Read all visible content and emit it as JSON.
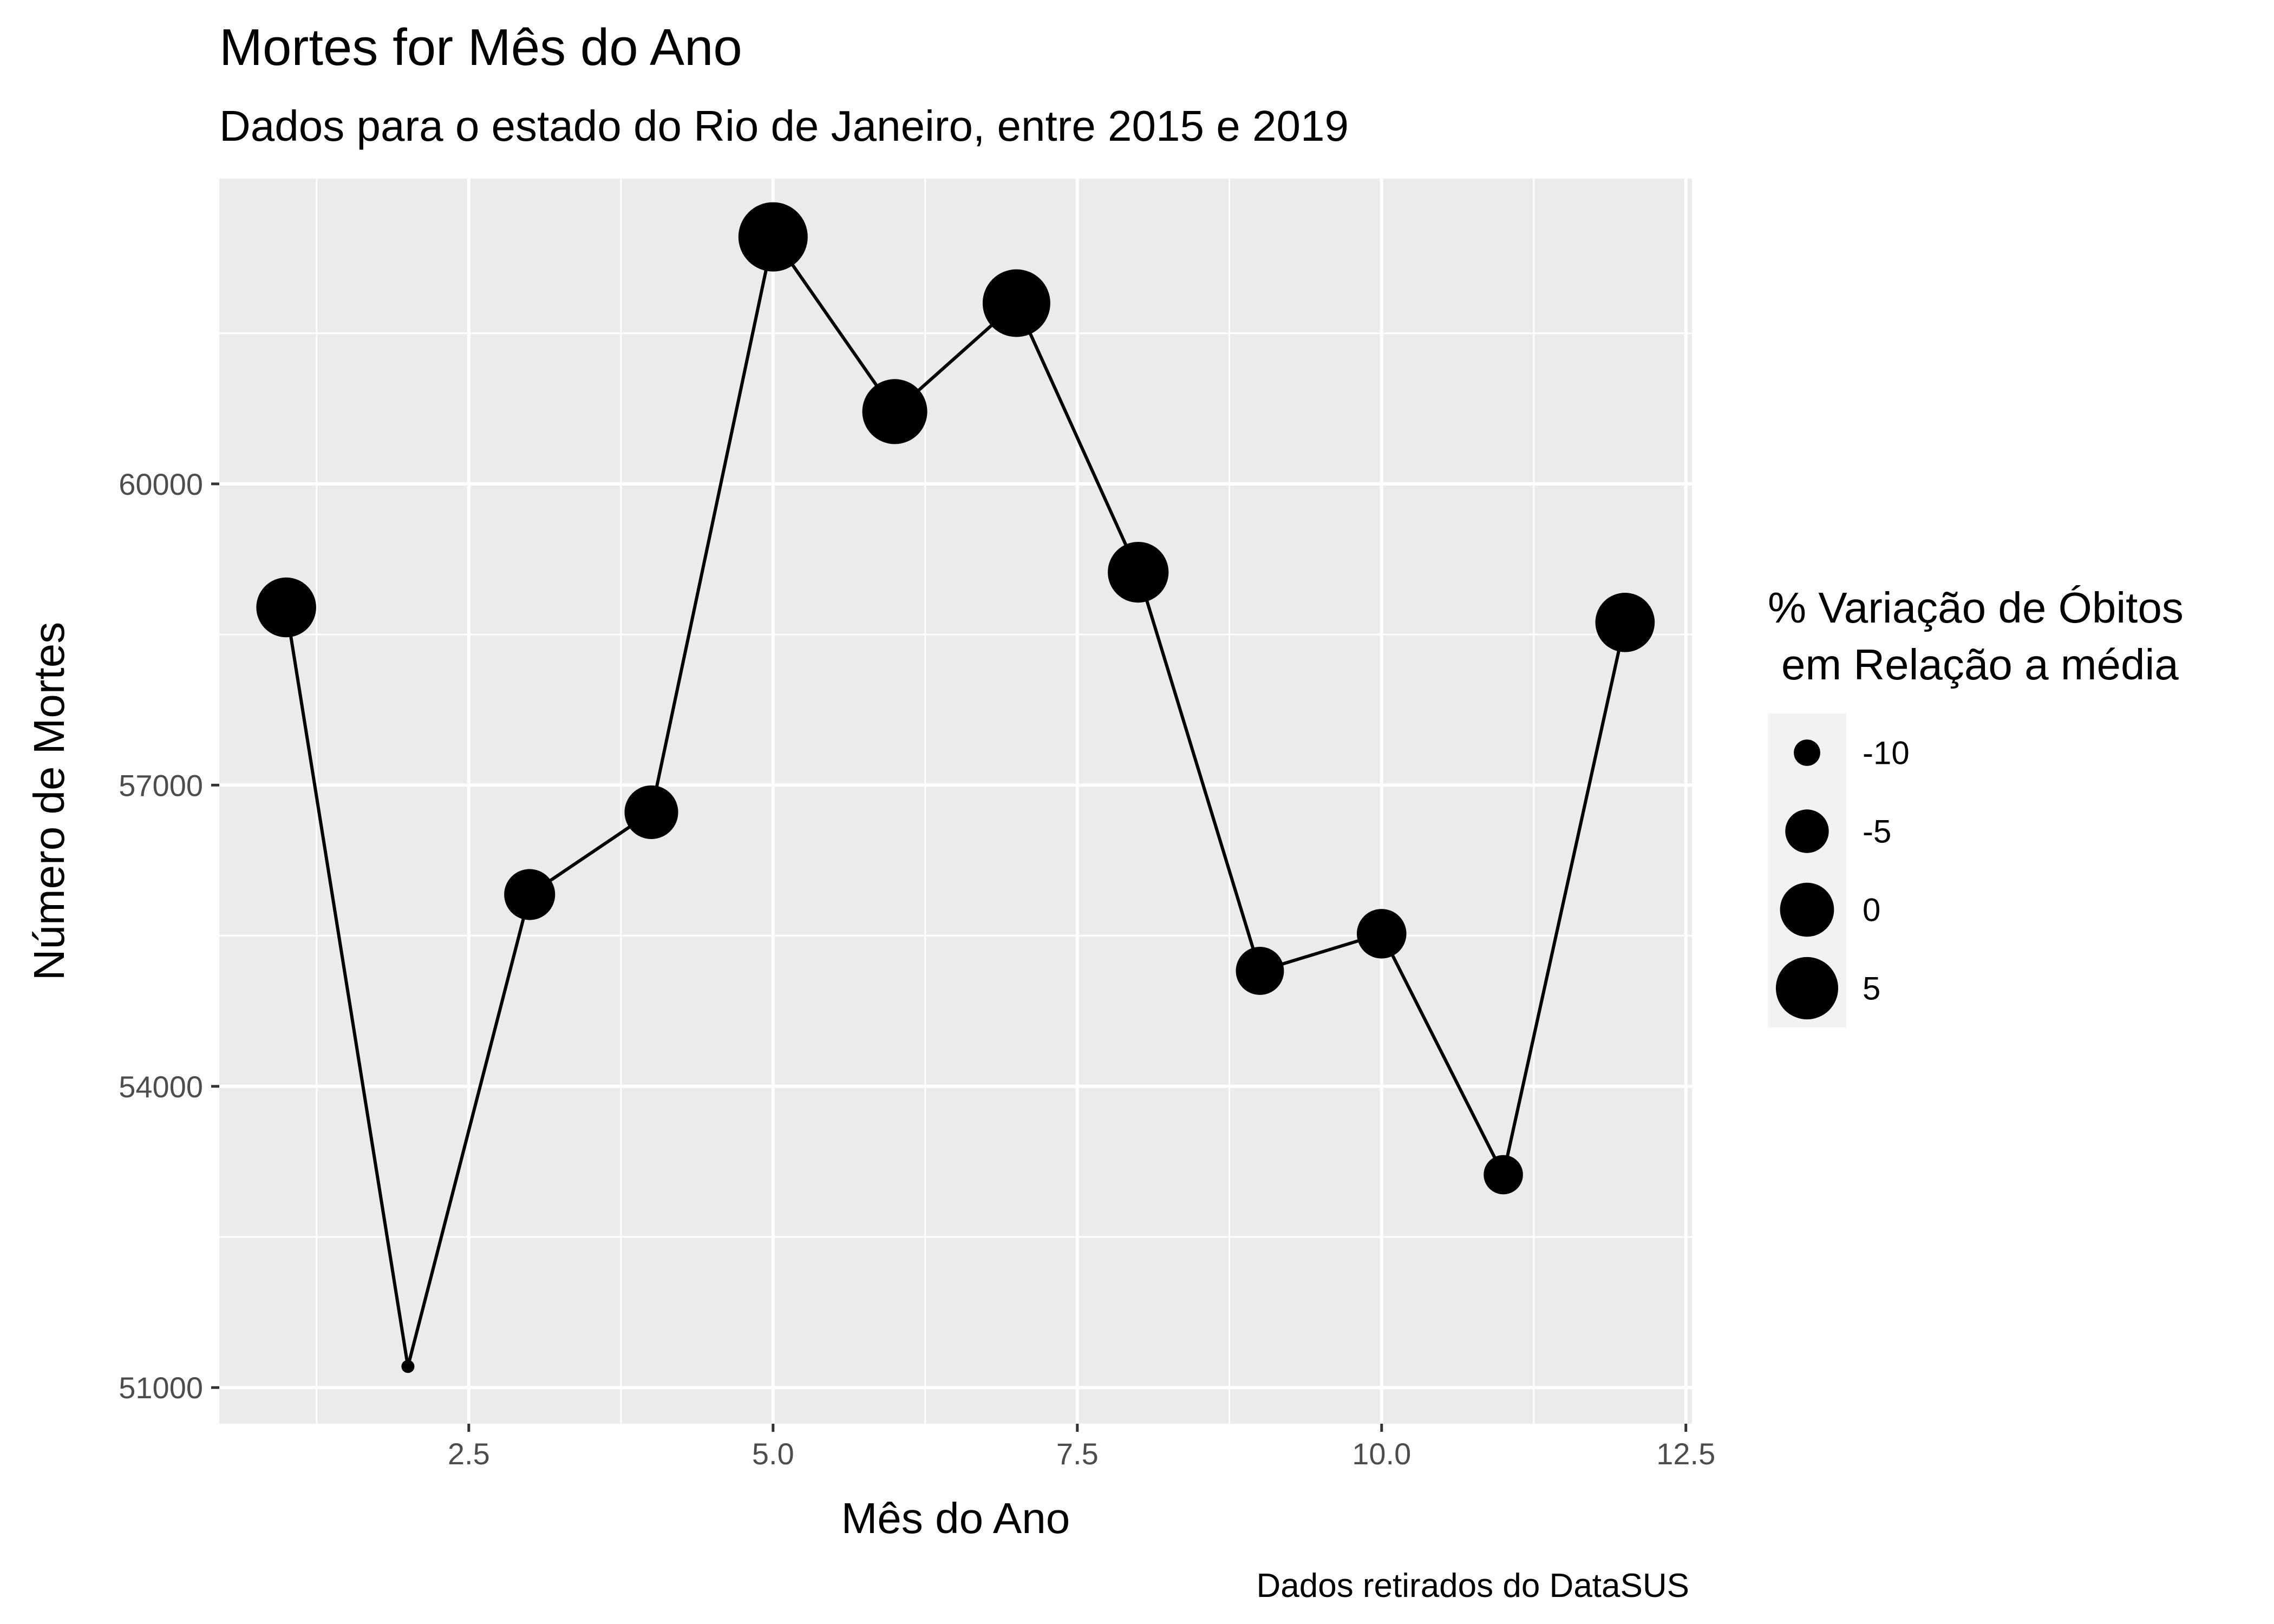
{
  "chart_data": {
    "type": "scatter",
    "title": "Mortes for Mês do Ano",
    "subtitle": "Dados para o estado do Rio de Janeiro, entre 2015 e 2019",
    "caption": "Dados retirados do DataSUS",
    "xlabel": "Mês do Ano",
    "ylabel": "Número de Mortes",
    "xlim": [
      0.45,
      12.55
    ],
    "ylim": [
      50640,
      63040
    ],
    "x_ticks": [
      2.5,
      5.0,
      7.5,
      10.0,
      12.5
    ],
    "x_tick_labels": [
      "2.5",
      "5.0",
      "7.5",
      "10.0",
      "12.5"
    ],
    "y_ticks": [
      51000,
      54000,
      57000,
      60000
    ],
    "y_tick_labels": [
      "51000",
      "54000",
      "57000",
      "60000"
    ],
    "grid": true,
    "connected_by_line": true,
    "colors": {
      "panel_background": "#ebebeb",
      "grid_line": "#ffffff",
      "line": "#000000",
      "point": "#000000",
      "tick_label": "#4d4d4d",
      "legend_key_background": "#f2f2f2"
    },
    "series": [
      {
        "x": [
          1,
          2,
          3,
          4,
          5,
          6,
          7,
          8,
          9,
          10,
          11,
          12
        ],
        "y": [
          58770,
          51210,
          55910,
          56730,
          62460,
          60720,
          61800,
          59120,
          55150,
          55520,
          53120,
          58620
        ],
        "size": [
          3.4,
          -11.2,
          -1.6,
          -0.2,
          9.9,
          6.8,
          8.7,
          4.0,
          -3.0,
          -2.3,
          -6.6,
          3.1
        ]
      }
    ],
    "legend": {
      "title_line1": "% Variação de Óbitos",
      "title_line2": "em Relação a média",
      "placement": "right",
      "items": [
        {
          "label": "-10",
          "value": -10
        },
        {
          "label": "-5",
          "value": -5
        },
        {
          "label": "0",
          "value": 0
        },
        {
          "label": "5",
          "value": 5
        }
      ]
    }
  }
}
